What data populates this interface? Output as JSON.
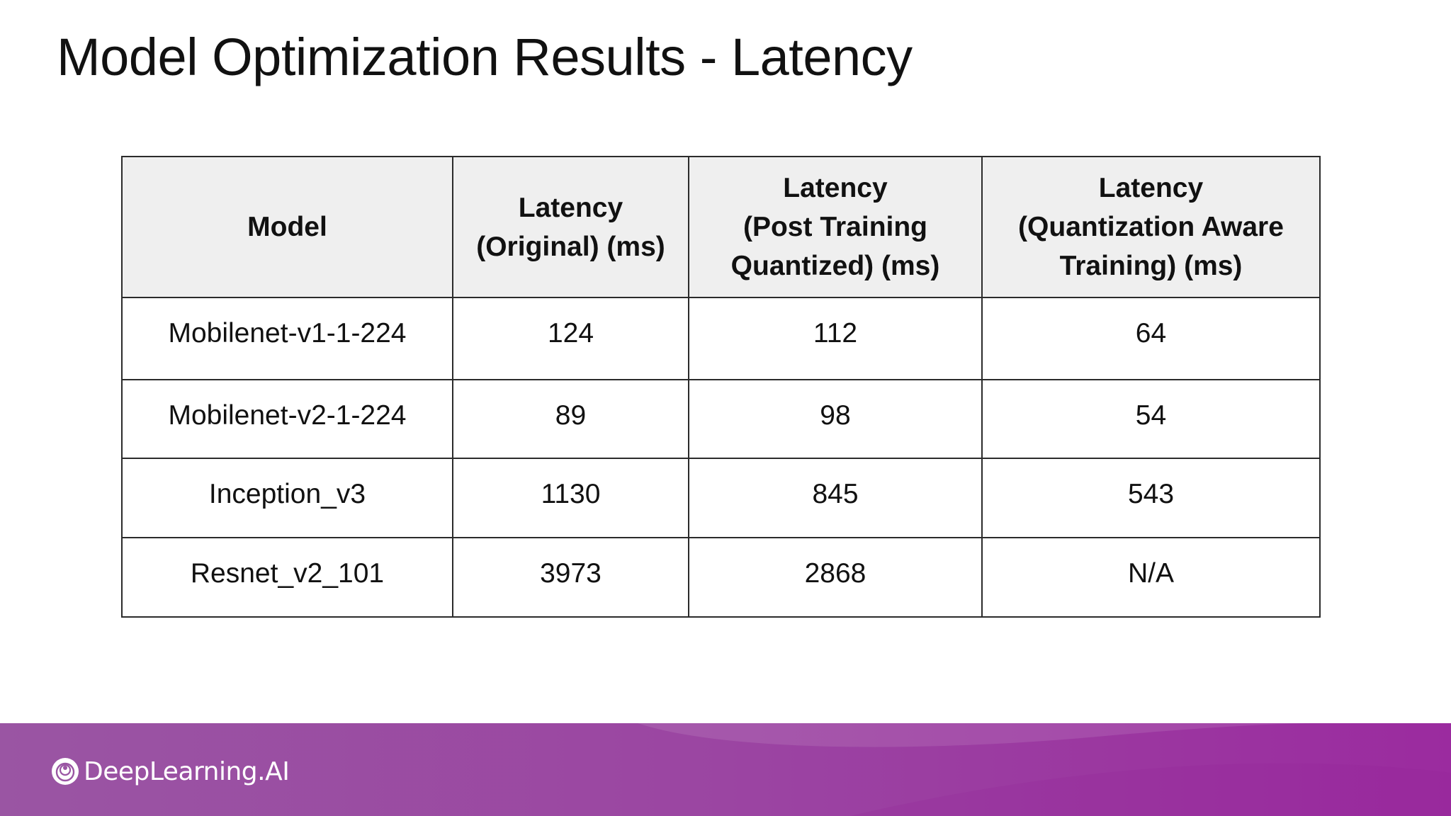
{
  "slide": {
    "title": "Model Optimization Results - Latency"
  },
  "table": {
    "headers": [
      {
        "lines": [
          "Model"
        ]
      },
      {
        "lines": [
          "Latency",
          "(Original) (ms)"
        ]
      },
      {
        "lines": [
          "Latency",
          "(Post Training",
          "Quantized) (ms)"
        ]
      },
      {
        "lines": [
          "Latency",
          "(Quantization Aware",
          "Training) (ms)"
        ]
      }
    ],
    "rows": [
      [
        "Mobilenet-v1-1-224",
        "124",
        "112",
        "64"
      ],
      [
        "Mobilenet-v2-1-224",
        "89",
        "98",
        "54"
      ],
      [
        "Inception_v3",
        "1130",
        "845",
        "543"
      ],
      [
        "Resnet_v2_101",
        "3973",
        "2868",
        "N/A"
      ]
    ]
  },
  "footer": {
    "brand": "DeepLearning.AI",
    "logo_icon": "deeplearning-ai-logo-icon",
    "gradient_start": "#9a55a3",
    "gradient_end": "#9b2b9f"
  }
}
